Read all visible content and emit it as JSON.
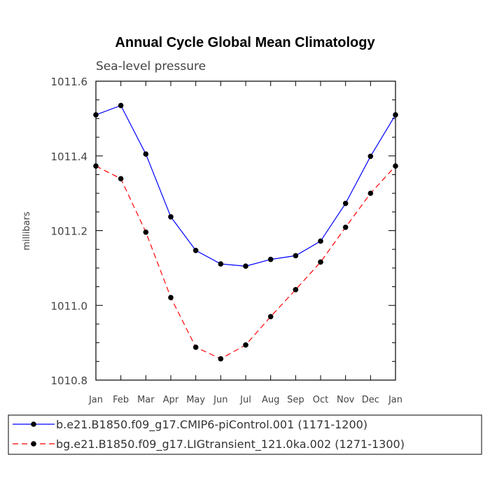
{
  "chart_data": {
    "type": "line",
    "title": "Annual Cycle Global Mean Climatology",
    "subtitle": "Sea-level pressure",
    "xlabel": "",
    "ylabel": "millibars",
    "ylim": [
      1010.8,
      1011.6
    ],
    "yticks": [
      "1010.8",
      "1011.0",
      "1011.2",
      "1011.4",
      "1011.6"
    ],
    "categories": [
      "Jan",
      "Feb",
      "Mar",
      "Apr",
      "May",
      "Jun",
      "Jul",
      "Aug",
      "Sep",
      "Oct",
      "Nov",
      "Dec",
      "Jan"
    ],
    "series": [
      {
        "name": "b.e21.B1850.f09_g17.CMIP6-piControl.001 (1171-1200)",
        "color": "#0000ff",
        "dash": "solid",
        "values": [
          1011.51,
          1011.535,
          1011.405,
          1011.237,
          1011.147,
          1011.111,
          1011.105,
          1011.123,
          1011.133,
          1011.172,
          1011.273,
          1011.399,
          1011.51
        ]
      },
      {
        "name": "bg.e21.B1850.f09_g17.LIGtransient_121.0ka.002 (1271-1300)",
        "color": "#ff0000",
        "dash": "dashed",
        "values": [
          1011.373,
          1011.339,
          1011.196,
          1011.021,
          1010.888,
          1010.857,
          1010.894,
          1010.97,
          1011.042,
          1011.116,
          1011.209,
          1011.3,
          1011.373
        ]
      }
    ],
    "grid": false,
    "legend": "bottom"
  }
}
